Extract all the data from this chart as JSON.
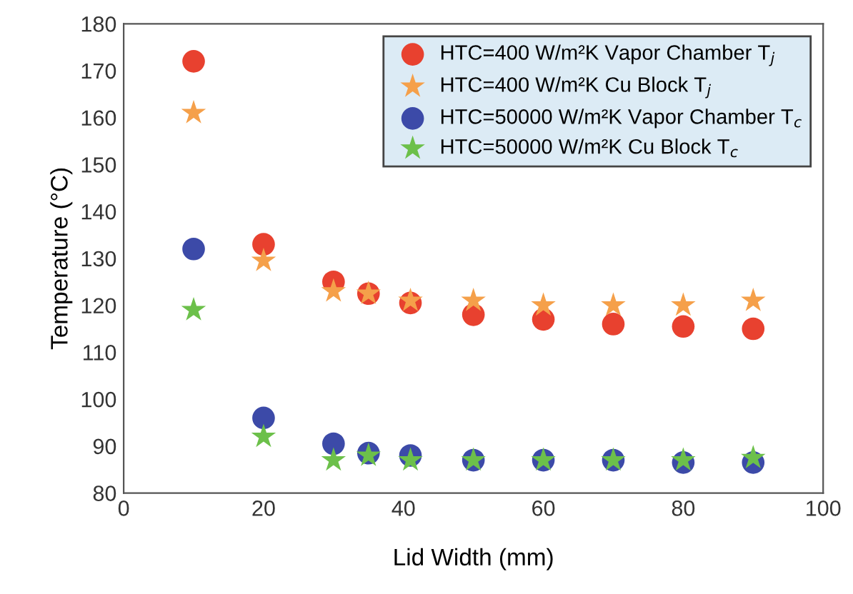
{
  "chart_data": {
    "type": "scatter",
    "xlabel": "Lid Width (mm)",
    "ylabel": "Temperature (°C)",
    "x": [
      10,
      20,
      30,
      35,
      41,
      50,
      60,
      70,
      80,
      90
    ],
    "series": [
      {
        "name": "HTC=400 W/m²K Vapor Chamber T$_{j}$",
        "color": "#e8412f",
        "marker": "circle",
        "values": [
          172,
          133,
          125,
          122.5,
          120.5,
          118,
          117,
          116,
          115.5,
          115
        ]
      },
      {
        "name": "HTC=400 W/m²K Cu Block T$_{j}$",
        "color": "#f5a04a",
        "marker": "star",
        "values": [
          161,
          129.5,
          123,
          122.5,
          121,
          121,
          120,
          120,
          120,
          121
        ]
      },
      {
        "name": "HTC=50000 W/m²K Vapor Chamber T$_{c}$",
        "color": "#3c4aa8",
        "marker": "circle",
        "values": [
          132,
          96,
          90.5,
          88.5,
          88,
          87,
          87,
          87,
          86.5,
          86.5
        ]
      },
      {
        "name": "HTC=50000 W/m²K Cu Block T$_{c}$",
        "color": "#6cc04a",
        "marker": "star",
        "values": [
          119,
          92,
          87,
          88,
          87,
          87,
          87,
          87,
          87,
          87.5
        ]
      }
    ],
    "xlim": [
      0,
      100
    ],
    "xticks": [
      0,
      20,
      40,
      60,
      80,
      100
    ],
    "ylim": [
      80,
      180
    ],
    "yticks": [
      80,
      90,
      100,
      110,
      120,
      130,
      140,
      150,
      160,
      170,
      180
    ],
    "grid": false,
    "legend": "top right"
  }
}
